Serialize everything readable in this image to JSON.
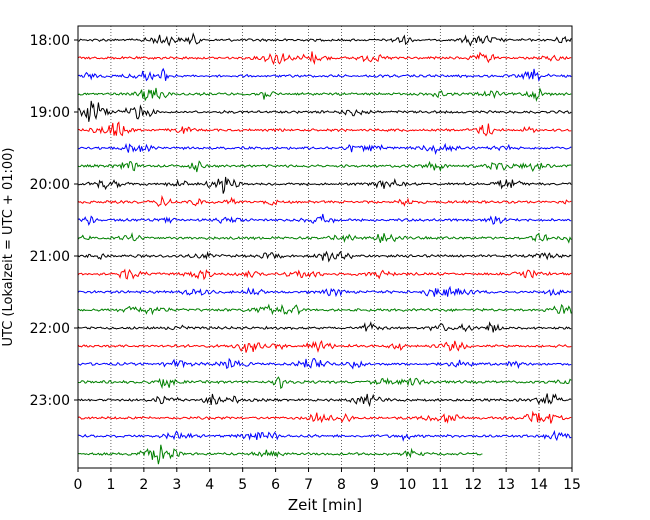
{
  "chart_data": {
    "type": "line",
    "title": "",
    "xlabel": "Zeit  [min]",
    "ylabel": "UTC (Lokalzeit = UTC + 01:00)",
    "xlim": [
      0,
      15
    ],
    "x_ticks": [
      0,
      1,
      2,
      3,
      4,
      5,
      6,
      7,
      8,
      9,
      10,
      11,
      12,
      13,
      14,
      15
    ],
    "y_ticks": [
      "18:00",
      "19:00",
      "20:00",
      "21:00",
      "22:00",
      "23:00"
    ],
    "grid": "vertical-dotted",
    "trace_interval_min": 15,
    "trace_count": 24,
    "color_cycle": [
      "#000000",
      "#ff0000",
      "#0000ff",
      "#008000"
    ],
    "last_trace_end_min": 12.3
  }
}
